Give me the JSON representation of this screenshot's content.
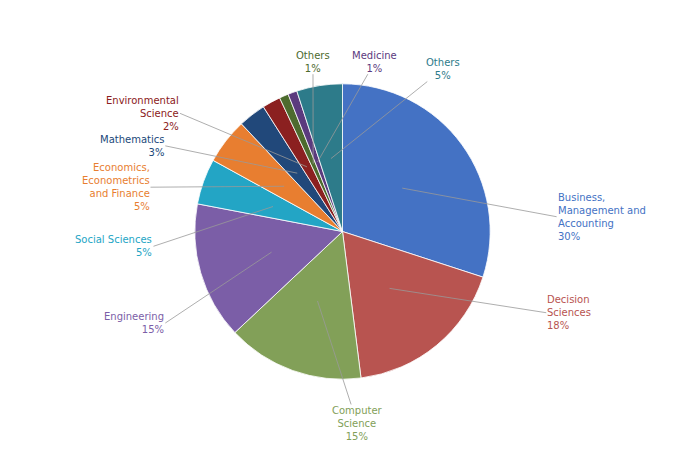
{
  "chart_data": {
    "type": "pie",
    "categories": [
      "Business,\nManagement and\nAccounting",
      "Decision\nSciences",
      "Computer\nScience",
      "Engineering",
      "Social Sciences",
      "Economics,\nEconometrics\nand Finance",
      "Mathematics",
      "Environmental\nScience",
      "Others",
      "Medicine",
      "Others"
    ],
    "values": [
      30,
      18,
      15,
      15,
      5,
      5,
      3,
      2,
      1,
      1,
      5
    ],
    "value_labels": [
      "30%",
      "18%",
      "15%",
      "15%",
      "5%",
      "5%",
      "3%",
      "2%",
      "1%",
      "1%",
      "5%"
    ],
    "colors": [
      "#4472C4",
      "#B85450",
      "#82A058",
      "#7B5EA7",
      "#23A5C5",
      "#E87E30",
      "#21487A",
      "#8B2020",
      "#4D6B2E",
      "#5B3A7E",
      "#2D7B8A"
    ],
    "data_labels": true
  }
}
